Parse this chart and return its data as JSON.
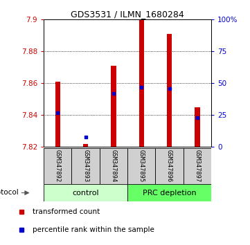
{
  "title": "GDS3531 / ILMN_1680284",
  "samples": [
    "GSM347892",
    "GSM347893",
    "GSM347894",
    "GSM347895",
    "GSM347896",
    "GSM347897"
  ],
  "transformed_counts": [
    7.861,
    7.822,
    7.871,
    7.9,
    7.891,
    7.845
  ],
  "percentile_ranks": [
    27,
    8,
    42,
    47,
    46,
    23
  ],
  "y_min": 7.82,
  "y_max": 7.9,
  "y_ticks": [
    7.82,
    7.84,
    7.86,
    7.88,
    7.9
  ],
  "right_y_ticks": [
    0,
    25,
    50,
    75,
    100
  ],
  "right_y_labels": [
    "0",
    "25",
    "50",
    "75",
    "100%"
  ],
  "bar_color": "#cc0000",
  "dot_color": "#0000cc",
  "bar_width": 0.18,
  "protocol_groups": [
    {
      "label": "control",
      "samples": [
        0,
        1,
        2
      ],
      "color": "#ccffcc"
    },
    {
      "label": "PRC depletion",
      "samples": [
        3,
        4,
        5
      ],
      "color": "#66ff66"
    }
  ],
  "legend_items": [
    {
      "label": "transformed count",
      "color": "#cc0000"
    },
    {
      "label": "percentile rank within the sample",
      "color": "#0000cc"
    }
  ],
  "tick_label_color_left": "#cc0000",
  "tick_label_color_right": "#0000cc",
  "grid_color": "#000000",
  "label_box_color": "#d0d0d0",
  "protocol_label": "protocol"
}
